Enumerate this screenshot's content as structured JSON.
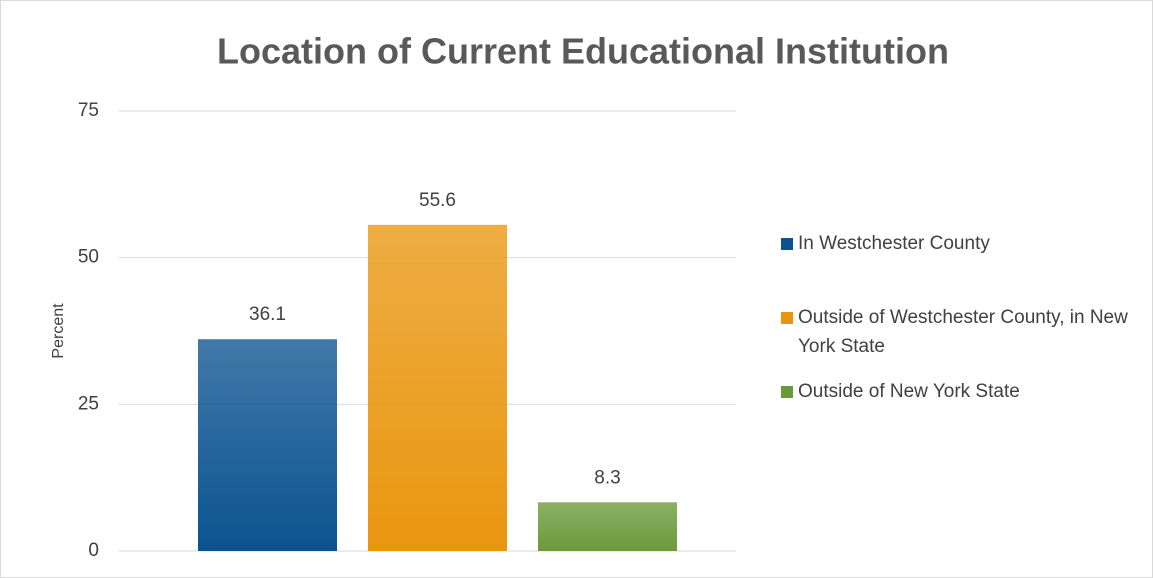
{
  "chart_data": {
    "type": "bar",
    "title": "Location of Current Educational Institution",
    "y_label": "Percent",
    "categories": [
      null
    ],
    "series": [
      {
        "name": "In Westchester County",
        "color": "#0b5390",
        "values": [
          36.1
        ]
      },
      {
        "name": "Outside of Westchester County, in New York State",
        "color": "#e9960f",
        "values": [
          55.6
        ]
      },
      {
        "name": "Outside of New York State",
        "color": "#6b9a3a",
        "values": [
          8.3
        ]
      }
    ],
    "ylim": [
      0,
      75
    ],
    "yticks": [
      0,
      25,
      50,
      75
    ],
    "grid": true,
    "legend": "right"
  }
}
